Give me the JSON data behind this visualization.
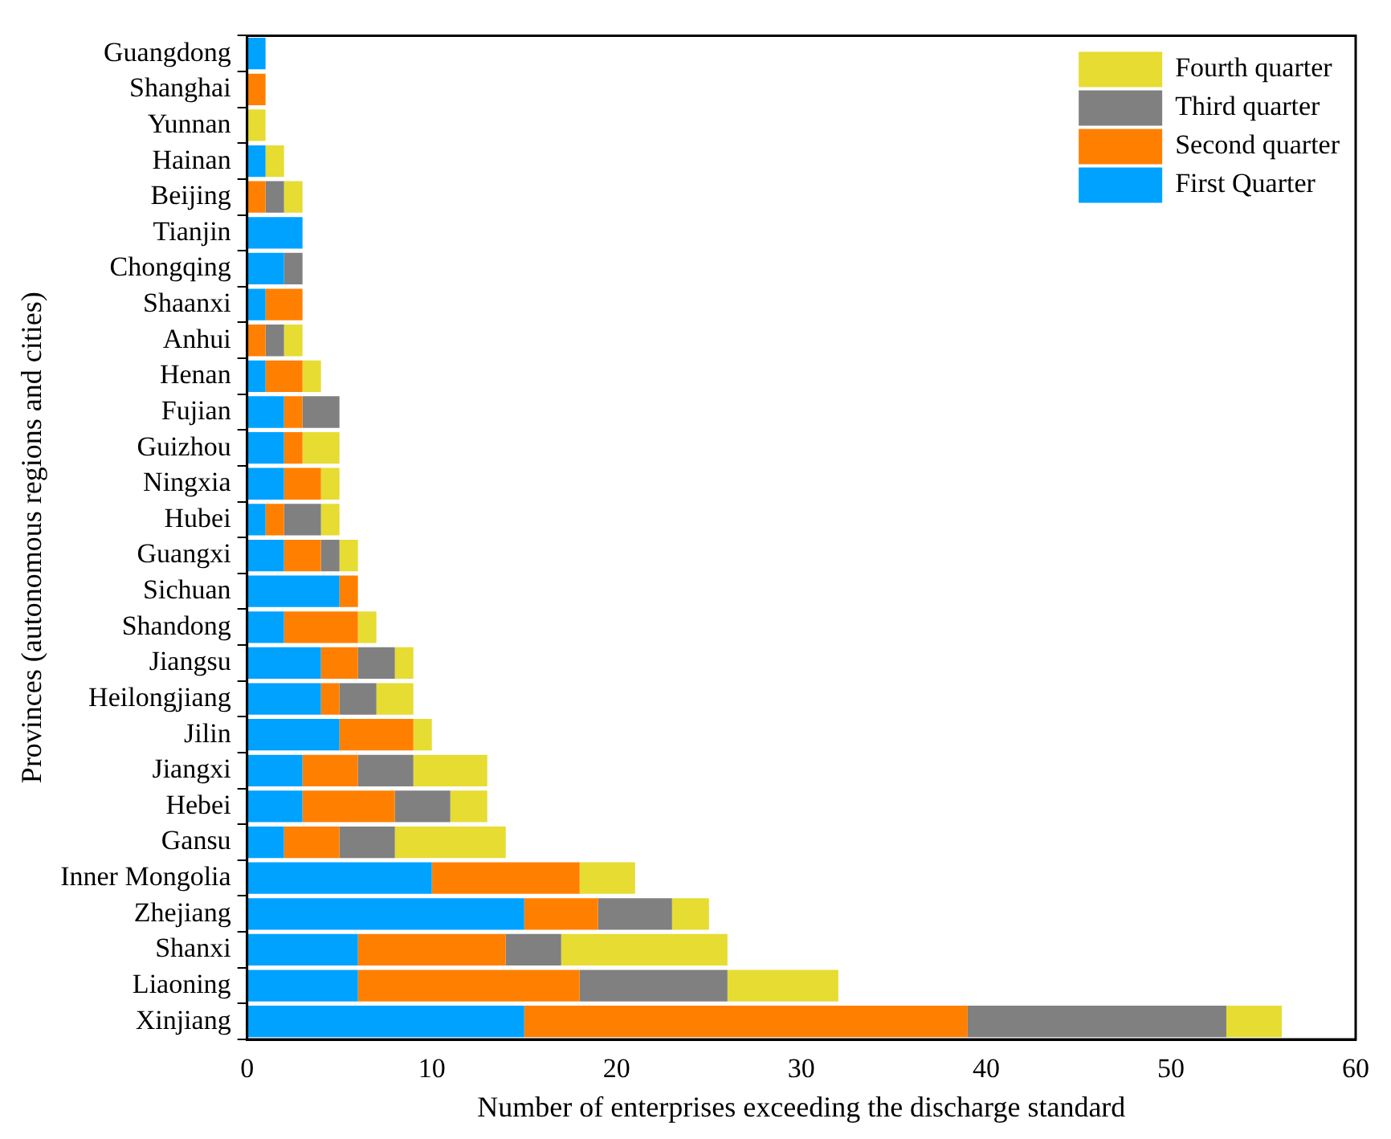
{
  "chart_data": {
    "type": "bar",
    "orientation": "horizontal",
    "stacked": true,
    "xlabel": "Number of enterprises exceeding the discharge standard",
    "ylabel": "Provinces (autonomous regions and cities)",
    "categories": [
      "Guangdong",
      "Shanghai",
      "Yunnan",
      "Hainan",
      "Beijing",
      "Tianjin",
      "Chongqing",
      "Shaanxi",
      "Anhui",
      "Henan",
      "Fujian",
      "Guizhou",
      "Ningxia",
      "Hubei",
      "Guangxi",
      "Sichuan",
      "Shandong",
      "Jiangsu",
      "Heilongjiang",
      "Jilin",
      "Jiangxi",
      "Hebei",
      "Gansu",
      "Inner Mongolia",
      "Zhejiang",
      "Shanxi",
      "Liaoning",
      "Xinjiang"
    ],
    "series": [
      {
        "name": "First Quarter",
        "color": "#00a2ff",
        "values": [
          1,
          0,
          0,
          1,
          0,
          3,
          2,
          1,
          0,
          1,
          2,
          2,
          2,
          1,
          2,
          5,
          2,
          4,
          4,
          5,
          3,
          3,
          2,
          10,
          15,
          6,
          6,
          15
        ]
      },
      {
        "name": "Second quarter",
        "color": "#ff8000",
        "values": [
          0,
          1,
          0,
          0,
          1,
          0,
          0,
          2,
          1,
          2,
          1,
          1,
          2,
          1,
          2,
          1,
          4,
          2,
          1,
          4,
          3,
          5,
          3,
          8,
          4,
          8,
          12,
          24
        ]
      },
      {
        "name": "Third quarter",
        "color": "#808080",
        "values": [
          0,
          0,
          0,
          0,
          1,
          0,
          1,
          0,
          1,
          0,
          2,
          0,
          0,
          2,
          1,
          0,
          0,
          2,
          2,
          0,
          3,
          3,
          3,
          0,
          4,
          3,
          8,
          14
        ]
      },
      {
        "name": "Fourth quarter",
        "color": "#e6dc32",
        "values": [
          0,
          0,
          1,
          1,
          1,
          0,
          0,
          0,
          1,
          1,
          0,
          2,
          1,
          1,
          1,
          0,
          1,
          1,
          2,
          1,
          4,
          2,
          6,
          3,
          2,
          9,
          6,
          3
        ]
      }
    ],
    "xlim": [
      0,
      60
    ],
    "xticks": [
      0,
      10,
      20,
      30,
      40,
      50,
      60
    ],
    "grid": false,
    "legend": "top right"
  }
}
